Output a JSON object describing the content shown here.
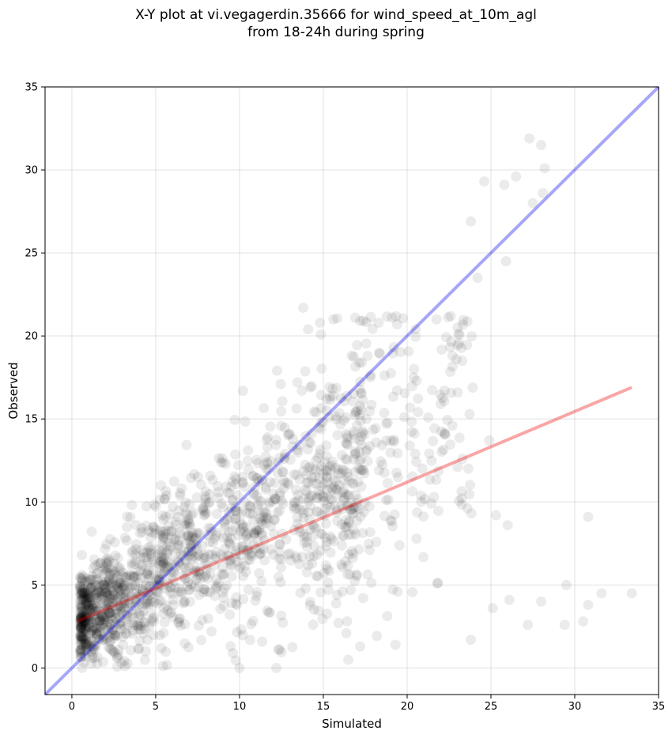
{
  "chart_data": {
    "type": "scatter",
    "title_line1": "X-Y plot at vi.vegagerdin.35666 for wind_speed_at_10m_agl",
    "title_line2": "from 18-24h during spring",
    "xlabel": "Simulated",
    "ylabel": "Observed",
    "xlim": [
      -1.6,
      35
    ],
    "ylim": [
      -1.6,
      35
    ],
    "xticks": [
      0,
      5,
      10,
      15,
      20,
      25,
      30,
      35
    ],
    "yticks": [
      0,
      5,
      10,
      15,
      20,
      25,
      30,
      35
    ],
    "grid": true,
    "point_color": "#000000",
    "point_alpha": 0.08,
    "one_to_one_line": {
      "color": "#0000ee",
      "from": [
        -1.6,
        -1.6
      ],
      "to": [
        35,
        35
      ]
    },
    "regression_line": {
      "color": "#ee0000",
      "from": [
        0.3,
        2.8
      ],
      "to": [
        33.4,
        16.9
      ]
    },
    "outliers": [
      [
        27.3,
        31.9
      ],
      [
        28.0,
        31.5
      ],
      [
        28.2,
        30.1
      ],
      [
        24.6,
        29.3
      ],
      [
        25.8,
        29.1
      ],
      [
        26.5,
        29.6
      ],
      [
        28.1,
        28.6
      ],
      [
        27.5,
        28.0
      ],
      [
        23.8,
        26.9
      ],
      [
        24.2,
        23.5
      ],
      [
        25.9,
        24.5
      ],
      [
        13.8,
        21.7
      ],
      [
        14.8,
        20.8
      ],
      [
        15.6,
        21.0
      ],
      [
        16.9,
        21.1
      ],
      [
        17.2,
        20.9
      ],
      [
        18.3,
        20.8
      ],
      [
        19.4,
        20.7
      ],
      [
        14.1,
        20.4
      ],
      [
        22.7,
        18.8
      ],
      [
        20.4,
        17.5
      ],
      [
        22.0,
        15.9
      ],
      [
        22.7,
        14.6
      ],
      [
        24.9,
        13.7
      ],
      [
        23.3,
        12.6
      ],
      [
        30.8,
        9.1
      ],
      [
        26.0,
        8.6
      ],
      [
        25.3,
        9.2
      ],
      [
        29.5,
        5.0
      ],
      [
        31.6,
        4.5
      ],
      [
        33.4,
        4.5
      ],
      [
        30.8,
        3.8
      ],
      [
        30.5,
        2.8
      ],
      [
        29.4,
        2.6
      ],
      [
        27.2,
        2.6
      ],
      [
        28.0,
        4.0
      ],
      [
        26.1,
        4.1
      ],
      [
        25.1,
        3.6
      ],
      [
        23.8,
        1.7
      ],
      [
        19.3,
        1.4
      ],
      [
        17.2,
        1.3
      ],
      [
        12.2,
        0.0
      ],
      [
        10.0,
        0.0
      ]
    ]
  }
}
